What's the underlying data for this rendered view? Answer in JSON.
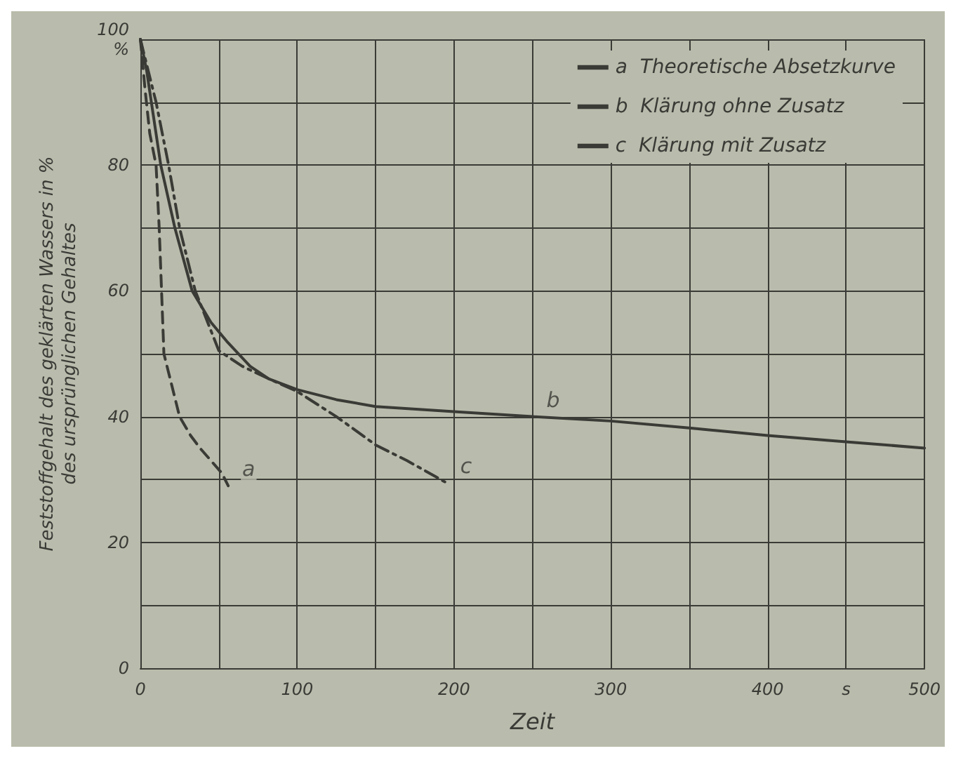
{
  "chart_data": {
    "type": "line",
    "xlabel": "Zeit",
    "ylabel": "Feststoffgehalt des geklärten Wassers in %\ndes ursprünglichen Gehaltes",
    "xlim": [
      0,
      500
    ],
    "ylim": [
      0,
      100
    ],
    "xticks": [
      0,
      {
        "value": 50,
        "label": null
      },
      100,
      {
        "value": 150,
        "label": null
      },
      200,
      {
        "value": 250,
        "label": null
      },
      300,
      {
        "value": 350,
        "label": null
      },
      400,
      {
        "value": 450,
        "label": "s"
      },
      500
    ],
    "yticks": [
      0,
      {
        "value": 10,
        "label": null
      },
      20,
      {
        "value": 30,
        "label": null
      },
      40,
      {
        "value": 50,
        "label": null
      },
      60,
      {
        "value": 70,
        "label": null
      },
      80,
      {
        "value": 90,
        "label": null
      },
      {
        "value": 100,
        "label": "100\n%"
      }
    ],
    "grid": true,
    "legend": "top right",
    "marker": "none",
    "series": [
      {
        "name": "a  Theoretische Absetzkurve",
        "color": "#3a3a36",
        "line_style": "dashed",
        "x": [
          0,
          3,
          6,
          10,
          12,
          15,
          20,
          25,
          32,
          38,
          45,
          52,
          56
        ],
        "values": [
          100,
          92,
          85,
          80,
          70,
          50,
          45,
          40,
          37,
          35,
          33,
          31,
          29
        ]
      },
      {
        "name": "b  Klärung ohne Zusatz",
        "color": "#3a3a36",
        "line_style": "solid",
        "x": [
          0,
          4,
          7,
          13,
          22,
          33,
          45,
          55,
          70,
          82,
          100,
          125,
          150,
          200,
          250,
          300,
          350,
          400,
          450,
          500
        ],
        "values": [
          100,
          95,
          90,
          80,
          70,
          60,
          55,
          52,
          48,
          46,
          44.3,
          42.7,
          41.6,
          40.8,
          40,
          39.3,
          38.2,
          37,
          36,
          35
        ]
      },
      {
        "name": "c  Klärung mit Zusatz",
        "color": "#3a3a36",
        "line_style": "dotted",
        "x": [
          0,
          5,
          10,
          18,
          25,
          35,
          50,
          65,
          82,
          100,
          125,
          150,
          170,
          188,
          195
        ],
        "values": [
          100,
          95,
          90,
          80,
          70,
          60,
          50.5,
          48,
          46,
          44,
          40,
          35.5,
          33,
          30.5,
          29.5
        ]
      }
    ],
    "annotations": [
      {
        "text": "a",
        "x": 56,
        "y": 29
      },
      {
        "text": "b",
        "x": 250,
        "y": 40
      },
      {
        "text": "c",
        "x": 195,
        "y": 29.5
      }
    ]
  }
}
